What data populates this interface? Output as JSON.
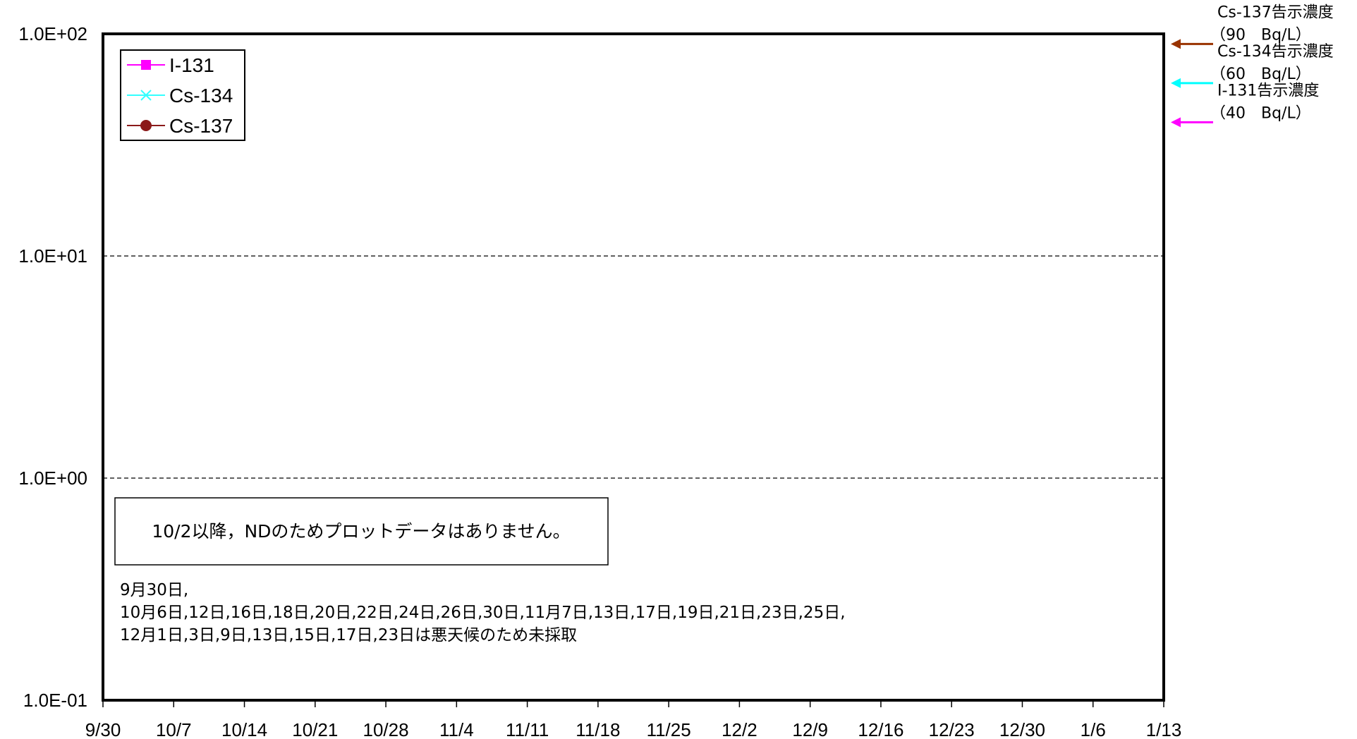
{
  "chart_data": {
    "type": "line",
    "yscale": "log",
    "ylim": [
      0.1,
      100
    ],
    "y_ticks": [
      {
        "value": 100,
        "label": "1.0E+02"
      },
      {
        "value": 10,
        "label": "1.0E+01"
      },
      {
        "value": 1,
        "label": "1.0E+00"
      },
      {
        "value": 0.1,
        "label": "1.0E-01"
      }
    ],
    "x_ticks": [
      "9/30",
      "10/7",
      "10/14",
      "10/21",
      "10/28",
      "11/4",
      "11/11",
      "11/18",
      "11/25",
      "12/2",
      "12/9",
      "12/16",
      "12/23",
      "12/30",
      "1/6",
      "1/13"
    ],
    "grid": "horizontal-dashed",
    "legend_position": "top-left",
    "series": [
      {
        "name": "I-131",
        "marker": "square",
        "color": "#ff00ff",
        "values": []
      },
      {
        "name": "Cs-134",
        "marker": "x",
        "color": "#33ffff",
        "values": []
      },
      {
        "name": "Cs-137",
        "marker": "circle",
        "color": "#8b1a1a",
        "values": []
      }
    ],
    "limit_annotations": [
      {
        "value": 90,
        "label": "Cs-137告示濃度",
        "sub": "（90　Bq/L）",
        "color": "#993300"
      },
      {
        "value": 60,
        "label": "Cs-134告示濃度",
        "sub": "（60　Bq/L）",
        "color": "#00ffff"
      },
      {
        "value": 40,
        "label": "I-131告示濃度",
        "sub": "（40　Bq/L）",
        "color": "#ff00ff"
      }
    ],
    "note_box": "10/2以降，NDのためプロットデータはありません。",
    "note_lines": [
      "9月30日,",
      "10月6日,12日,16日,18日,20日,22日,24日,26日,30日,11月7日,13日,17日,19日,21日,23日,25日,",
      "12月1日,3日,9日,13日,15日,17日,23日は悪天候のため未採取"
    ]
  }
}
